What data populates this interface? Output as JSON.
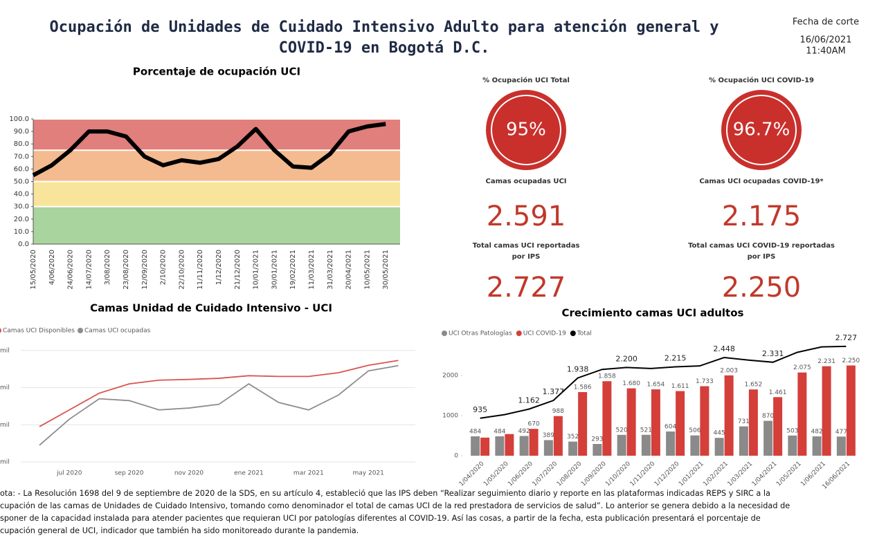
{
  "header": {
    "title": [
      "Ocupación de Unidades de Cuidado Intensivo Adulto para atención general y",
      "COVID-19 en Bogotá D.C."
    ],
    "date_label": "Fecha de corte",
    "date": "16/06/2021",
    "time": "11:40AM"
  },
  "kpis": [
    {
      "label": [
        "% Ocupación UCI Total"
      ],
      "value": "95%",
      "gauge": true
    },
    {
      "label": [
        "% Ocupación UCI COVID-19"
      ],
      "value": "96.7%",
      "gauge": true
    },
    {
      "label": [
        "Camas ocupadas UCI"
      ],
      "value": "2.591"
    },
    {
      "label": [
        "Camas UCI ocupadas COVID-19*"
      ],
      "value": "2.175"
    },
    {
      "label": [
        "Total camas UCI reportadas",
        "por IPS"
      ],
      "value": "2.727"
    },
    {
      "label": [
        "Total camas UCI COVID-19 reportadas",
        "por IPS"
      ],
      "value": "2.250"
    }
  ],
  "chart_data": [
    {
      "type": "line",
      "title": "Porcentaje de ocupación UCI",
      "categories": [
        "15/05/2020",
        "4/06/2020",
        "24/06/2020",
        "14/07/2020",
        "3/08/2020",
        "23/08/2020",
        "12/09/2020",
        "2/10/2020",
        "22/10/2020",
        "11/11/2020",
        "1/12/2020",
        "21/12/2020",
        "10/01/2021",
        "30/01/2021",
        "19/02/2021",
        "11/03/2021",
        "31/03/2021",
        "20/04/2021",
        "10/05/2021",
        "30/05/2021"
      ],
      "series": [
        {
          "color": "#000000",
          "values": [
            55,
            63,
            75,
            90,
            90,
            86,
            70,
            63,
            67,
            65,
            68,
            78,
            92,
            75,
            62,
            61,
            72,
            90,
            94,
            96
          ]
        }
      ],
      "bands": [
        {
          "from": 75,
          "to": 100,
          "color": "#e07f7c"
        },
        {
          "from": 50,
          "to": 75,
          "color": "#f3bb8f"
        },
        {
          "from": 30,
          "to": 50,
          "color": "#f8e49a"
        },
        {
          "from": 0,
          "to": 30,
          "color": "#a9d49e"
        }
      ],
      "ylim": [
        0,
        100
      ],
      "yticks": [
        {
          "value": 0,
          "label": "0.0"
        },
        {
          "value": 10,
          "label": "10.0"
        },
        {
          "value": 20,
          "label": "20.0"
        },
        {
          "value": 30,
          "label": "30.0"
        },
        {
          "value": 40,
          "label": "40.0"
        },
        {
          "value": 50,
          "label": "50.0"
        },
        {
          "value": 60,
          "label": "60.0"
        },
        {
          "value": 70,
          "label": "70.0"
        },
        {
          "value": 80,
          "label": "80.0"
        },
        {
          "value": 90,
          "label": "90.0"
        },
        {
          "value": 100,
          "label": "100.0"
        }
      ]
    },
    {
      "type": "line",
      "title": "Camas Unidad de Cuidado Intensivo - UCI",
      "categories": [
        null,
        "jul 2020",
        null,
        "sep 2020",
        null,
        "nov 2020",
        null,
        "ene 2021",
        null,
        "mar 2021",
        null,
        "may 2021",
        null
      ],
      "series": [
        {
          "name": "Camas UCI Disponibles",
          "color": "#d9534f",
          "values": [
            0.95,
            1.4,
            1.85,
            2.1,
            2.2,
            2.22,
            2.25,
            2.32,
            2.3,
            2.3,
            2.4,
            2.6,
            2.73
          ]
        },
        {
          "name": "Camas UCI ocupadas",
          "color": "#8c8c8c",
          "values": [
            0.45,
            1.15,
            1.7,
            1.65,
            1.4,
            1.45,
            1.55,
            2.1,
            1.6,
            1.4,
            1.8,
            2.45,
            2.59
          ]
        }
      ],
      "ylim": [
        0,
        3.2
      ],
      "yticks": [
        {
          "value": 0,
          "label": "mil"
        },
        {
          "value": 1,
          "label": "mil"
        },
        {
          "value": 2,
          "label": "mil"
        },
        {
          "value": 3,
          "label": "mil"
        }
      ],
      "grid": true
    },
    {
      "type": "bar-line",
      "title": "Crecimiento camas UCI adultos",
      "categories": [
        "1/04/2020",
        "1/05/2020",
        "1/06/2020",
        "1/07/2020",
        "1/08/2020",
        "1/09/2020",
        "1/10/2020",
        "1/11/2020",
        "1/12/2020",
        "1/01/2021",
        "1/02/2021",
        "1/03/2021",
        "1/04/2021",
        "1/05/2021",
        "1/06/2021",
        "16/06/2021"
      ],
      "series": [
        {
          "name": "UCI Otras Patologías",
          "color": "#8a8a8a",
          "kind": "bar",
          "values": [
            484,
            484,
            492,
            389,
            352,
            293,
            520,
            521,
            604,
            506,
            445,
            731,
            870,
            503,
            482,
            477
          ]
        },
        {
          "name": "UCI COVID-19",
          "color": "#d43f3a",
          "kind": "bar",
          "values": [
            451,
            540,
            670,
            988,
            1586,
            1858,
            1680,
            1654,
            1611,
            1733,
            2003,
            1652,
            1461,
            2075,
            2231,
            2250
          ],
          "value_labels": [
            null,
            null,
            "670",
            "988",
            "1.586",
            "1.858",
            "1.680",
            "1.654",
            "1.611",
            "1.733",
            "2.003",
            "1.652",
            "1.461",
            "2.075",
            "2.231",
            "2.250"
          ]
        },
        {
          "name": "Total",
          "color": "#000000",
          "kind": "line",
          "values": [
            935,
            1024,
            1162,
            1377,
            1938,
            2151,
            2200,
            2175,
            2215,
            2239,
            2448,
            2383,
            2331,
            2578,
            2713,
            2727
          ],
          "value_labels": [
            "935",
            null,
            "1.162",
            "1.377",
            "1.938",
            null,
            "2.200",
            null,
            "2.215",
            null,
            "2.448",
            null,
            "2.331",
            null,
            null,
            "2.727"
          ]
        }
      ],
      "ylim": [
        0,
        2800
      ],
      "yticks": [
        0,
        1000,
        2000
      ]
    }
  ],
  "note": [
    "ota: - La Resolución 1698 del 9 de septiembre de 2020 de la SDS, en su artículo 4, estableció que las IPS deben “Realizar seguimiento diario y reporte en las plataformas indicadas REPS y SIRC a la",
    "cupación de las camas de Unidades de Cuidado Intensivo, tomando como denominador el total de camas UCI de la red prestadora de servicios de salud”. Lo anterior se genera debido a la necesidad de",
    "sponer de la capacidad instalada para atender pacientes que requieran UCI por patologías diferentes al COVID-19. Así las cosas, a partir de la fecha, esta publicación presentará el porcentaje de",
    "cupación general de UCI, indicador que también ha sido monitoreado durante la pandemia."
  ]
}
